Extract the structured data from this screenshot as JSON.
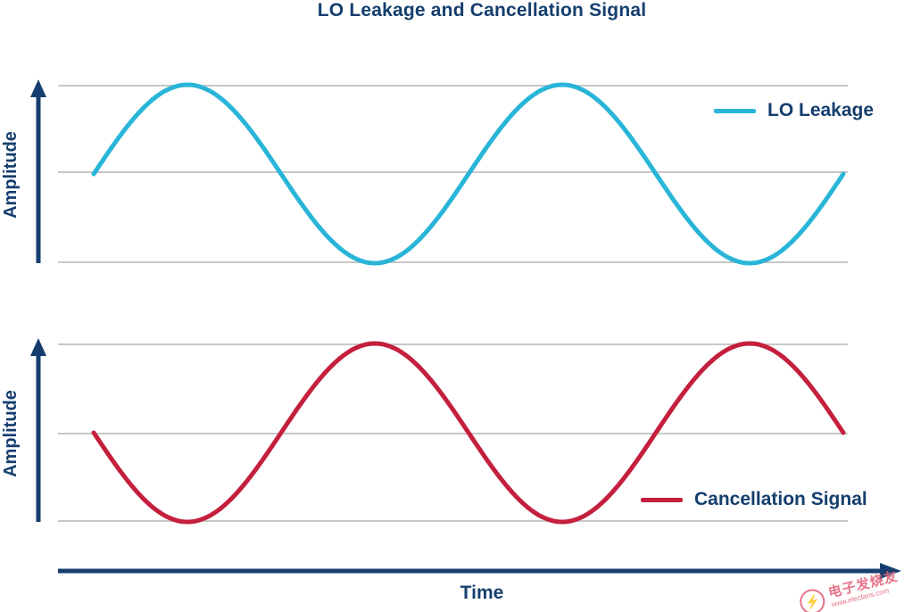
{
  "page": {
    "title": "LO Leakage and Cancellation Signal",
    "x_axis_label": "Time",
    "y_axis_label": "Amplitude"
  },
  "legend": {
    "lo_leakage": "LO Leakage",
    "cancellation": "Cancellation Signal"
  },
  "watermark": {
    "name": "电子发烧友",
    "url": "www.elecfans.com"
  },
  "colors": {
    "navy": "#153e6e",
    "grid": "#c7c7c7",
    "watermark": "#e4647c"
  },
  "chart_data": [
    {
      "type": "line",
      "title": "LO Leakage and Cancellation Signal",
      "xlabel": "Time",
      "ylabel": "Amplitude",
      "ylim": [
        -1,
        1
      ],
      "x_range_cycles": [
        0,
        2
      ],
      "grid": "horizontal gridlines at y = -1, 0, +1",
      "legend_position": "upper right",
      "series": [
        {
          "name": "LO Leakage",
          "color": "#29b5d8",
          "function": "y = sin(2*pi*t)",
          "amplitude": 1,
          "phase_deg": 0,
          "cycles": 2,
          "x": [
            0,
            0.25,
            0.5,
            0.75,
            1,
            1.25,
            1.5,
            1.75,
            2
          ],
          "y": [
            0,
            1,
            0,
            -1,
            0,
            1,
            0,
            -1,
            0
          ]
        }
      ]
    },
    {
      "type": "line",
      "title": "",
      "xlabel": "Time",
      "ylabel": "Amplitude",
      "ylim": [
        -1,
        1
      ],
      "x_range_cycles": [
        0,
        2
      ],
      "grid": "horizontal gridlines at y = -1, 0, +1",
      "legend_position": "lower right",
      "series": [
        {
          "name": "Cancellation Signal",
          "color": "#c41f3d",
          "function": "y = -sin(2*pi*t), 180 deg out of phase with LO leakage",
          "amplitude": 1,
          "phase_deg": 180,
          "cycles": 2,
          "x": [
            0,
            0.25,
            0.5,
            0.75,
            1,
            1.25,
            1.5,
            1.75,
            2
          ],
          "y": [
            0,
            -1,
            0,
            1,
            0,
            -1,
            0,
            1,
            0
          ]
        }
      ]
    }
  ]
}
